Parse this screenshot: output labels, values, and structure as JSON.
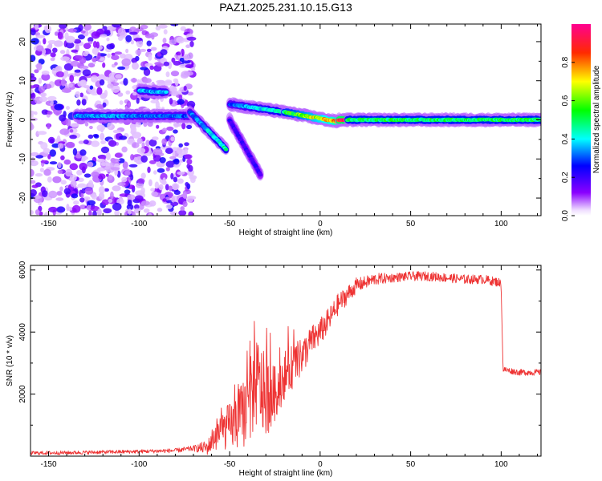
{
  "title": "PAZ1.2025.231.10.15.G13",
  "chart_data": [
    {
      "type": "heatmap",
      "xlabel": "Height of straight line (km)",
      "ylabel": "Frequency (Hz)",
      "xlim": [
        -160,
        122
      ],
      "ylim": [
        -24.5,
        24.5
      ],
      "xticks": [
        -150,
        -100,
        -50,
        0,
        50,
        100
      ],
      "xtick_labels": [
        "-150",
        "-100",
        "-50",
        "0",
        "50",
        "100"
      ],
      "yticks": [
        -20,
        -10,
        0,
        10,
        20
      ],
      "ytick_labels": [
        "-20",
        "-10",
        "0",
        "10",
        "20"
      ],
      "colorbar": {
        "label": "Normalized spectral amplitude",
        "range": [
          0,
          1
        ],
        "ticks": [
          0.0,
          0.2,
          0.4,
          0.6,
          0.8
        ],
        "tick_labels": [
          "0.0",
          "0.2",
          "0.4",
          "0.6",
          "0.8"
        ],
        "colors": [
          "#ffffff",
          "#8000ff",
          "#0000ff",
          "#00ffff",
          "#00ff00",
          "#ffff00",
          "#ff8000",
          "#ff0000",
          "#ff0080"
        ]
      },
      "noise_region_x": [
        -160,
        -70
      ],
      "ridge": [
        {
          "x": [
            -135,
            -70
          ],
          "f": [
            1.0,
            1.0
          ],
          "amp": [
            0.35,
            0.3
          ]
        },
        {
          "x": [
            -100,
            -85
          ],
          "f": [
            7.5,
            7.0
          ],
          "amp": [
            0.35,
            0.35
          ]
        },
        {
          "x": [
            -72,
            -52
          ],
          "f": [
            2.0,
            -7.5
          ],
          "amp": [
            0.3,
            0.45
          ]
        },
        {
          "x": [
            -50,
            -33
          ],
          "f": [
            0.0,
            -14.0
          ],
          "amp": [
            0.2,
            0.2
          ]
        },
        {
          "x": [
            -50,
            -20
          ],
          "f": [
            4.0,
            2.0
          ],
          "amp": [
            0.3,
            0.45
          ]
        },
        {
          "x": [
            -20,
            10
          ],
          "f": [
            2.0,
            -0.5
          ],
          "amp": [
            0.5,
            0.8
          ]
        },
        {
          "x": [
            10,
            15
          ],
          "f": [
            0.0,
            0.0
          ],
          "amp": [
            0.9,
            0.9
          ]
        },
        {
          "x": [
            15,
            122
          ],
          "f": [
            0.0,
            0.0
          ],
          "amp": [
            0.5,
            0.5
          ]
        }
      ]
    },
    {
      "type": "line",
      "xlabel": "Height of straight line (km)",
      "ylabel": "SNR (10 * v/v)",
      "xlim": [
        -160,
        122
      ],
      "ylim": [
        0,
        6150
      ],
      "xticks": [
        -150,
        -100,
        -50,
        0,
        50,
        100
      ],
      "xtick_labels": [
        "-150",
        "-100",
        "-50",
        "0",
        "50",
        "100"
      ],
      "yticks": [
        2000,
        4000,
        6000
      ],
      "ytick_labels": [
        "2000",
        "4000",
        "6000"
      ],
      "color": "#ee3333",
      "series": [
        {
          "name": "SNR",
          "x": [
            -160,
            -140,
            -120,
            -100,
            -80,
            -70,
            -62,
            -58,
            -52,
            -46,
            -40,
            -35,
            -30,
            -25,
            -20,
            -15,
            -10,
            -5,
            0,
            5,
            10,
            15,
            20,
            25,
            30,
            40,
            50,
            60,
            70,
            80,
            90,
            99,
            100,
            101,
            105,
            110,
            122
          ],
          "y": [
            100,
            110,
            130,
            150,
            180,
            250,
            280,
            700,
            900,
            1100,
            1600,
            2400,
            1900,
            2000,
            2600,
            2900,
            3200,
            3700,
            4000,
            4400,
            4900,
            5200,
            5500,
            5600,
            5700,
            5750,
            5800,
            5800,
            5750,
            5700,
            5700,
            5600,
            5500,
            2800,
            2750,
            2700,
            2700
          ],
          "spread": [
            60,
            60,
            60,
            60,
            70,
            90,
            250,
            500,
            700,
            900,
            1300,
            1500,
            1300,
            900,
            800,
            700,
            600,
            500,
            450,
            400,
            350,
            300,
            250,
            200,
            200,
            150,
            150,
            150,
            150,
            150,
            150,
            150,
            150,
            100,
            100,
            100,
            100
          ]
        }
      ]
    }
  ]
}
